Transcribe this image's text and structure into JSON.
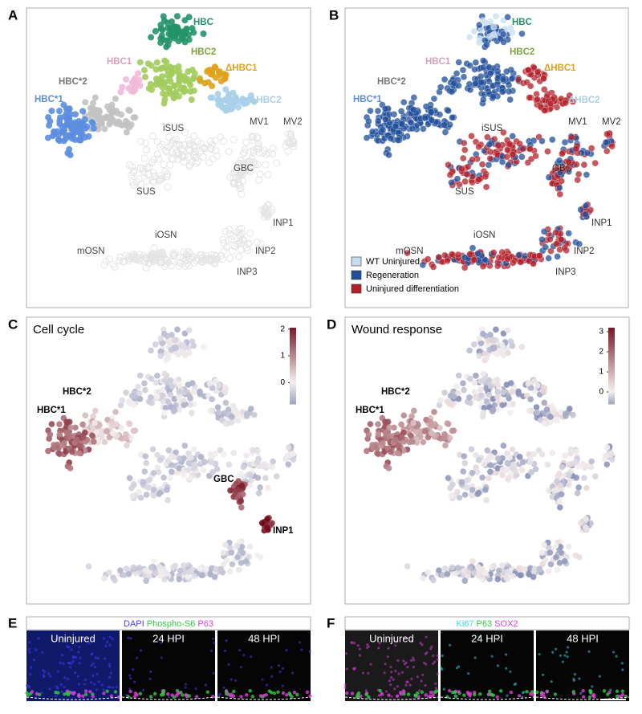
{
  "panel_a": {
    "letter": "A",
    "labels": [
      "HBC",
      "HBC2",
      "HBC1",
      "ΔHBC1",
      "HBC*2",
      "HBC*1",
      "ΔHBC2",
      "iSUS",
      "MV1",
      "MV2",
      "GBC",
      "SUS",
      "INP1",
      "iOSN",
      "mOSN",
      "INP2",
      "INP3"
    ]
  },
  "panel_b": {
    "letter": "B",
    "labels": [
      "HBC",
      "HBC2",
      "HBC1",
      "ΔHBC1",
      "HBC*2",
      "HBC*1",
      "ΔHBC2",
      "iSUS",
      "MV1",
      "MV2",
      "GBC",
      "SUS",
      "INP1",
      "iOSN",
      "mOSN",
      "INP2",
      "INP3"
    ],
    "legend": [
      {
        "name": "WT Uninjured",
        "color": "#c6dcf0"
      },
      {
        "name": "Regeneration",
        "color": "#1f4e9a"
      },
      {
        "name": "Uninjured differentiation",
        "color": "#b3202a"
      }
    ]
  },
  "panel_c": {
    "letter": "C",
    "title": "Cell cycle",
    "labels": [
      "HBC*2",
      "HBC*1",
      "GBC",
      "INP1"
    ],
    "colorbar": {
      "lim": [
        -0.8,
        2.05
      ],
      "ticks": [
        0,
        1,
        2
      ]
    }
  },
  "panel_d": {
    "letter": "D",
    "title": "Wound response",
    "labels": [
      "HBC*2",
      "HBC*1"
    ],
    "colorbar": {
      "lim": [
        -0.6,
        3.2
      ],
      "ticks": [
        0,
        1,
        2,
        3
      ]
    }
  },
  "panel_e": {
    "letter": "E",
    "stains": [
      {
        "name": "DAPI",
        "color": "#4a3cff"
      },
      {
        "name": "Phospho-S6",
        "color": "#2ecc40"
      },
      {
        "name": "P63",
        "color": "#e03ce0"
      }
    ],
    "conditions": [
      "Uninjured",
      "24 HPI",
      "48 HPI"
    ]
  },
  "panel_f": {
    "letter": "F",
    "stains": [
      {
        "name": "Ki67",
        "color": "#38d8e8"
      },
      {
        "name": "P63",
        "color": "#2ecc40"
      },
      {
        "name": "SOX2",
        "color": "#e03ce0"
      }
    ],
    "conditions": [
      "Uninjured",
      "24 HPI",
      "48 HPI"
    ]
  }
}
